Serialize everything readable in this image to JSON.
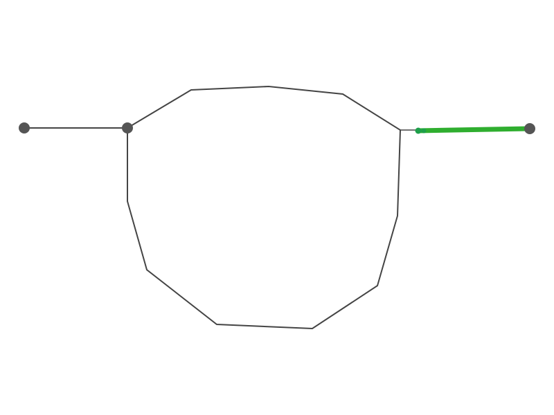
{
  "colors": {
    "background": "#ffffff",
    "edge": "#444444",
    "node": "#555555",
    "highlight": "#2fae2f",
    "highlight_end": "#1e9f4a"
  },
  "diagram": {
    "nodes": [
      {
        "id": "left-node"
      },
      {
        "id": "junction-node"
      },
      {
        "id": "right-node"
      }
    ],
    "edges": [
      {
        "id": "left-branch-edge",
        "highlighted": false
      },
      {
        "id": "loop-polyline",
        "highlighted": false
      },
      {
        "id": "right-branch-edge",
        "highlighted": true
      }
    ]
  }
}
